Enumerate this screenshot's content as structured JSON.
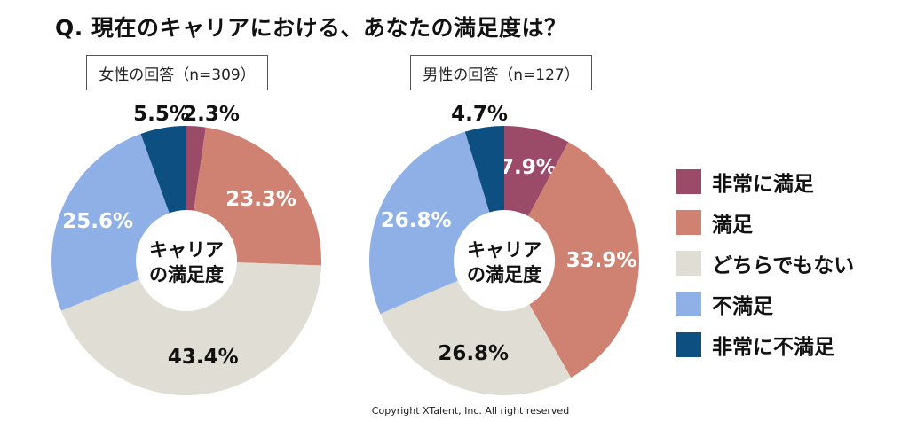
{
  "title": "Q. 現在のキャリアにおける、あなたの満足度は？",
  "copyright": "Copyright XTalent, Inc. All right reserved",
  "center_label": [
    "キャリア",
    "の満足度"
  ],
  "chart_data": [
    {
      "type": "pie",
      "subtitle": "女性の回答（n=309）",
      "categories": [
        "非常に満足",
        "満足",
        "どちらでもない",
        "不満足",
        "非常に不満足"
      ],
      "values": [
        2.3,
        23.3,
        43.4,
        25.6,
        5.5
      ],
      "labels": [
        "2.3%",
        "23.3%",
        "43.4%",
        "25.6%",
        "5.5%"
      ]
    },
    {
      "type": "pie",
      "subtitle": "男性の回答（n=127）",
      "categories": [
        "非常に満足",
        "満足",
        "どちらでもない",
        "不満足",
        "非常に不満足"
      ],
      "values": [
        7.9,
        33.9,
        26.8,
        26.8,
        4.7
      ],
      "labels": [
        "7.9%",
        "33.9%",
        "26.8%",
        "26.8%",
        "4.7%"
      ]
    }
  ],
  "legend": {
    "position": "right",
    "items": [
      {
        "label": "非常に満足",
        "color": "#9b4a68"
      },
      {
        "label": "満足",
        "color": "#cf8271"
      },
      {
        "label": "どちらでもない",
        "color": "#e0ded4"
      },
      {
        "label": "不満足",
        "color": "#8fb0e6"
      },
      {
        "label": "非常に不満足",
        "color": "#0c4f80"
      }
    ]
  }
}
